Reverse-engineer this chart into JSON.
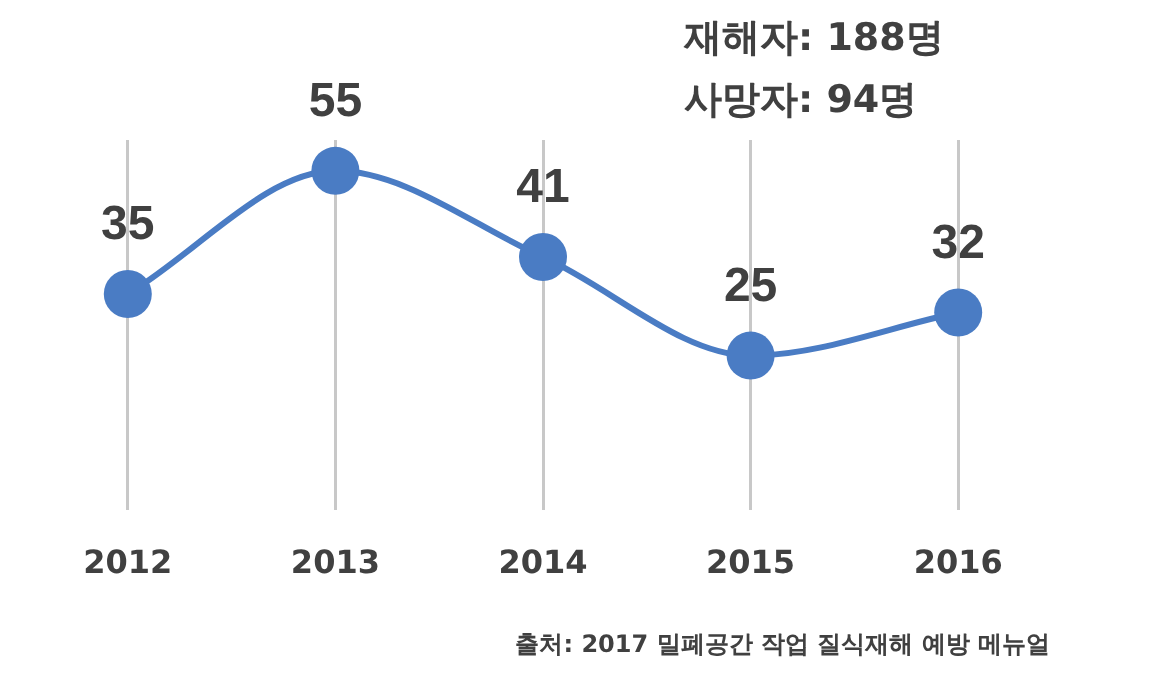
{
  "chart_data": {
    "type": "line",
    "categories": [
      "2012",
      "2013",
      "2014",
      "2015",
      "2016"
    ],
    "series": [
      {
        "color": "#4a7cc4",
        "values": [
          35,
          55,
          41,
          25,
          32
        ]
      }
    ],
    "data_labels": true,
    "marker": "circle",
    "grid": "x",
    "legend": false,
    "tick_labels": "x",
    "annotations": [
      "재해자: 188명",
      "사망자: 94명",
      "출처: 2017 밀폐공간 작업 질식재해 예방 메뉴얼"
    ]
  }
}
